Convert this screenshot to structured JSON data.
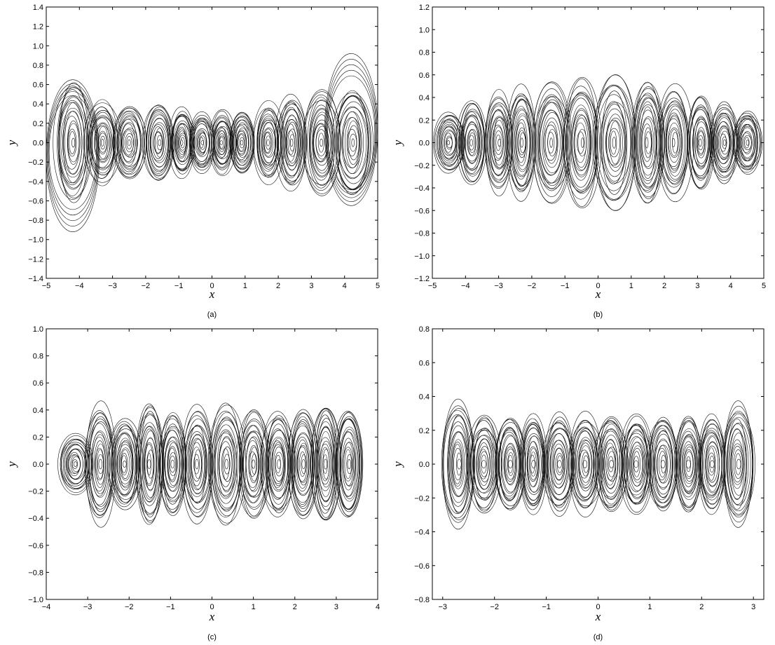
{
  "chart_data": [
    {
      "type": "line",
      "caption": "(a)",
      "xlabel": "x",
      "ylabel": "y",
      "xlim": [
        -5,
        5
      ],
      "ylim": [
        -1.4,
        1.4
      ],
      "xticks": [
        "-5",
        "-4",
        "-3",
        "-2",
        "-1",
        "0",
        "1",
        "2",
        "3",
        "4",
        "5"
      ],
      "yticks": [
        "-1.4",
        "-1.2",
        "-1.0",
        "-0.8",
        "-0.6",
        "-0.4",
        "-0.2",
        "0.0",
        "0.2",
        "0.4",
        "0.6",
        "0.8",
        "1.0",
        "1.2",
        "1.4"
      ],
      "grid": false,
      "attractor_centers_x": [
        -4.2,
        -3.3,
        -2.5,
        -1.6,
        -0.9,
        -0.3,
        0.3,
        0.9,
        1.7,
        2.4,
        3.3,
        4.25
      ],
      "scroll_amplitudes_y": [
        0.65,
        0.45,
        0.4,
        0.42,
        0.36,
        0.32,
        0.33,
        0.35,
        0.42,
        0.5,
        0.55,
        0.6
      ],
      "extreme_loops": [
        {
          "center_x": -4.2,
          "y_min": -0.92,
          "y_max": 0.65
        },
        {
          "center_x": 4.2,
          "y_min": -0.65,
          "y_max": 0.92
        }
      ]
    },
    {
      "type": "line",
      "caption": "(b)",
      "xlabel": "x",
      "ylabel": "y",
      "xlim": [
        -5,
        5
      ],
      "ylim": [
        -1.2,
        1.2
      ],
      "xticks": [
        "-5",
        "-4",
        "-3",
        "-2",
        "-1",
        "0",
        "1",
        "2",
        "3",
        "4",
        "5"
      ],
      "yticks": [
        "-1.2",
        "-1.0",
        "-0.8",
        "-0.6",
        "-0.4",
        "-0.2",
        "0.0",
        "0.2",
        "0.4",
        "0.6",
        "0.8",
        "1.0",
        "1.2"
      ],
      "grid": false,
      "attractor_centers_x": [
        -4.5,
        -3.8,
        -3.0,
        -2.3,
        -1.4,
        -0.5,
        0.5,
        1.5,
        2.3,
        3.1,
        3.8,
        4.5
      ],
      "scroll_amplitudes_y": [
        0.28,
        0.38,
        0.45,
        0.5,
        0.55,
        0.57,
        0.6,
        0.58,
        0.5,
        0.42,
        0.35,
        0.3
      ]
    },
    {
      "type": "line",
      "caption": "(c)",
      "xlabel": "x",
      "ylabel": "y",
      "xlim": [
        -4,
        4
      ],
      "ylim": [
        -1.0,
        1.0
      ],
      "xticks": [
        "-4",
        "-3",
        "-2",
        "-1",
        "0",
        "1",
        "2",
        "3",
        "4"
      ],
      "yticks": [
        "-1.0",
        "-0.8",
        "-0.6",
        "-0.4",
        "-0.2",
        "0.0",
        "0.2",
        "0.4",
        "0.6",
        "0.8",
        "1.0"
      ],
      "grid": false,
      "attractor_centers_x": [
        -3.3,
        -2.7,
        -2.1,
        -1.5,
        -0.95,
        -0.35,
        0.35,
        1.0,
        1.6,
        2.2,
        2.75,
        3.3
      ],
      "scroll_amplitudes_y": [
        0.22,
        0.45,
        0.35,
        0.46,
        0.4,
        0.43,
        0.45,
        0.42,
        0.4,
        0.42,
        0.45,
        0.44
      ]
    },
    {
      "type": "line",
      "caption": "(d)",
      "xlabel": "x",
      "ylabel": "y",
      "xlim": [
        -3.2,
        3.2
      ],
      "ylim": [
        -0.8,
        0.8
      ],
      "xticks": [
        "-3",
        "-2",
        "-1",
        "0",
        "1",
        "2",
        "3"
      ],
      "xtick_values": [
        -3,
        -2,
        -1,
        0,
        1,
        2,
        3
      ],
      "yticks": [
        "-0.8",
        "-0.6",
        "-0.4",
        "-0.2",
        "0.0",
        "0.2",
        "0.4",
        "0.6",
        "0.8"
      ],
      "grid": false,
      "attractor_centers_x": [
        -2.7,
        -2.2,
        -1.7,
        -1.25,
        -0.75,
        -0.25,
        0.25,
        0.75,
        1.25,
        1.75,
        2.2,
        2.7
      ],
      "scroll_amplitudes_y": [
        0.38,
        0.3,
        0.3,
        0.3,
        0.3,
        0.3,
        0.3,
        0.3,
        0.3,
        0.3,
        0.3,
        0.38
      ]
    }
  ]
}
